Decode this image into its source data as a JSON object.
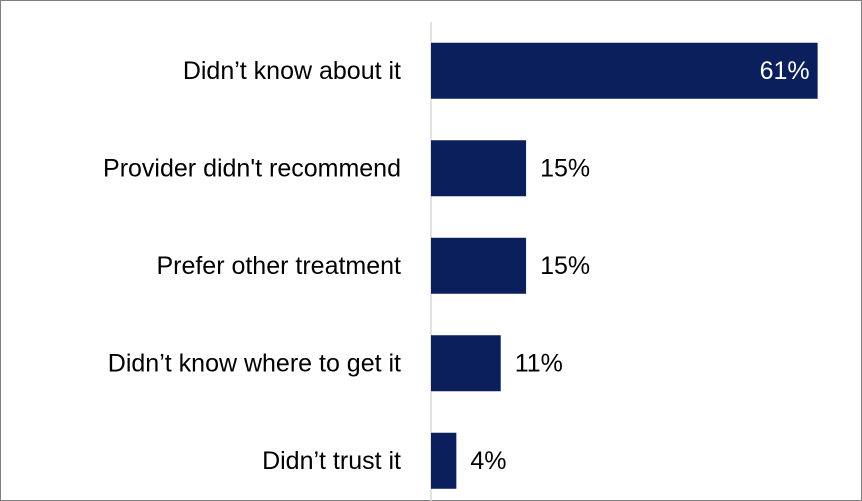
{
  "chart_data": {
    "type": "bar",
    "orientation": "horizontal",
    "categories": [
      "Didn’t know about it",
      "Provider didn't recommend",
      "Prefer other treatment",
      "Didn’t know where to get it",
      "Didn’t trust it"
    ],
    "values": [
      61,
      15,
      15,
      11,
      4
    ],
    "data_labels": [
      "61%",
      "15%",
      "15%",
      "11%",
      "4%"
    ],
    "xlim": [
      0,
      68
    ],
    "grid": false,
    "legend": "none",
    "bar_color": "#0a1f5c",
    "inside_label_color": "#ffffff",
    "outside_label_color": "#000000",
    "axis_line_color": "#d9d9d9"
  }
}
